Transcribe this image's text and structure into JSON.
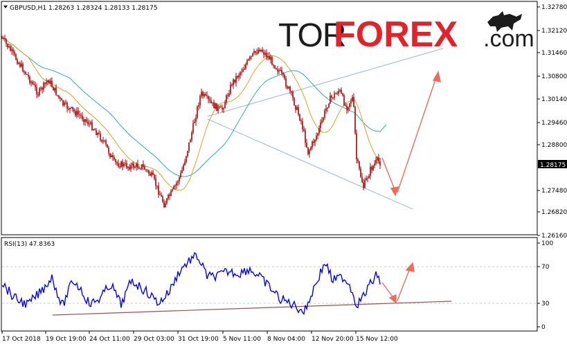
{
  "header": {
    "symbol": "GBPUSD,H1",
    "ohlc": "1.28263 1.28324 1.28133 1.28175"
  },
  "rsi_header": "RSI(13) 47.8363",
  "logo": {
    "tor": "TOR",
    "forex": "FOREX",
    "com": ".com"
  },
  "price_axis": {
    "labels": [
      "1.32780",
      "1.32120",
      "1.31460",
      "1.30800",
      "1.30140",
      "1.29460",
      "1.28800",
      "1.28175",
      "1.27480",
      "1.26820",
      "1.26160"
    ],
    "current_price": "1.28175"
  },
  "rsi_axis": {
    "labels": [
      "100",
      "70",
      "30",
      "0"
    ]
  },
  "time_axis": {
    "labels": [
      "17 Oct 2018",
      "19 Oct 19:00",
      "24 Oct 11:00",
      "29 Oct 03:00",
      "31 Oct 19:00",
      "5 Nov 11:00",
      "8 Nov 04:00",
      "12 Nov 20:00",
      "15 Nov 12:00"
    ]
  },
  "colors": {
    "candles": "#a40000",
    "ma_slow": "#27aeb0",
    "ma_fast": "#e0a020",
    "rsi_line": "#0000ff",
    "trend_line": "#a9c0d8",
    "rsi_trend": "#9a5050",
    "arrows": "#ee6a5a",
    "grid": "#c8c8c8"
  },
  "chart_data": [
    {
      "type": "candlestick",
      "title": "GBPUSD,H1",
      "ylim": [
        1.2616,
        1.3278
      ],
      "close_path": [
        [
          "17 Oct 2018",
          1.3188
        ],
        [
          "18 Oct",
          1.31
        ],
        [
          "19 Oct 19:00",
          1.305
        ],
        [
          "22 Oct",
          1.301
        ],
        [
          "23 Oct",
          1.298
        ],
        [
          "24 Oct 11:00",
          1.296
        ],
        [
          "25 Oct",
          1.286
        ],
        [
          "26 Oct",
          1.282
        ],
        [
          "29 Oct 03:00",
          1.284
        ],
        [
          "30 Oct",
          1.272
        ],
        [
          "31 Oct",
          1.274
        ],
        [
          "31 Oct 19:00",
          1.296
        ],
        [
          "1 Nov",
          1.303
        ],
        [
          "2 Nov",
          1.298
        ],
        [
          "5 Nov 11:00",
          1.305
        ],
        [
          "6 Nov",
          1.31
        ],
        [
          "7 Nov",
          1.316
        ],
        [
          "8 Nov 04:00",
          1.309
        ],
        [
          "9 Nov",
          1.298
        ],
        [
          "12 Nov",
          1.283
        ],
        [
          "12 Nov 20:00",
          1.3
        ],
        [
          "13 Nov",
          1.305
        ],
        [
          "14 Nov",
          1.299
        ],
        [
          "15 Nov 12:00",
          1.278
        ],
        [
          "16 Nov",
          1.2818
        ]
      ],
      "current_price": 1.28175
    },
    {
      "type": "line",
      "title": "RSI(13) 47.8363",
      "ylim": [
        0,
        100
      ],
      "levels": [
        30,
        70
      ],
      "value": 47.8363
    }
  ]
}
